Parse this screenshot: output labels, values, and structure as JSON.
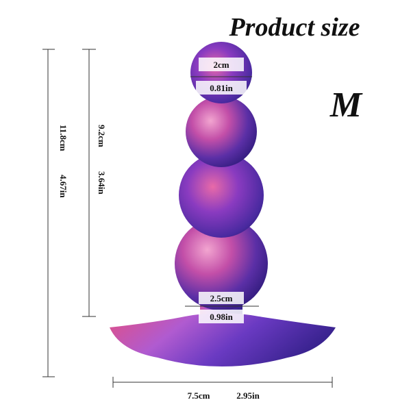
{
  "title": "Product size",
  "size": "M",
  "dimensions": {
    "tip_width": {
      "cm": "2cm",
      "in": "0.81in"
    },
    "neck_width": {
      "cm": "2.5cm",
      "in": "0.98in"
    },
    "total_length": {
      "cm": "11.8cm",
      "in": "4.67in"
    },
    "insertable_length": {
      "cm": "9.2cm",
      "in": "3.64in"
    },
    "base_width": {
      "cm": "7.5cm",
      "in": "2.95in"
    }
  }
}
